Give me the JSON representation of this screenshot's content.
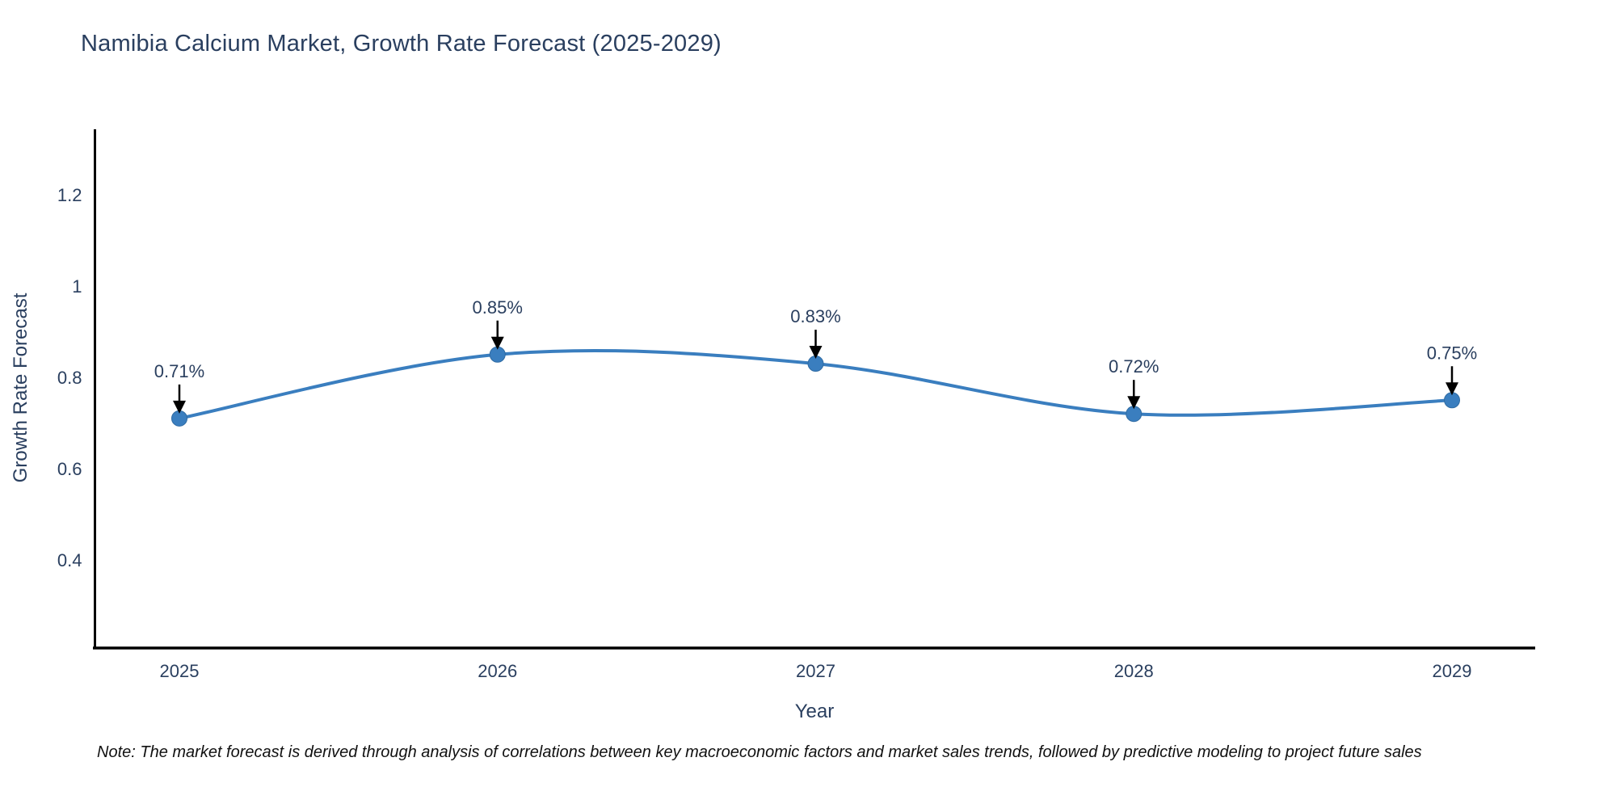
{
  "note": "Note: The market forecast is derived through analysis of correlations between key macroeconomic factors and market sales trends, followed by predictive modeling to project future sales",
  "colors": {
    "line": "#3a7ebf",
    "marker_fill": "#3a7ebf",
    "marker_edge": "#2f6ba3",
    "axis_line": "#000000",
    "tick_text": "#2a3f5f",
    "annotation_text": "#2a3f5f",
    "annotation_arrow": "#000000",
    "title_text": "#2a3f5f",
    "background": "#ffffff"
  },
  "chart_data": {
    "type": "line",
    "title": "Namibia Calcium Market, Growth Rate Forecast (2025-2029)",
    "xlabel": "Year",
    "ylabel": "Growth Rate Forecast",
    "x": [
      "2025",
      "2026",
      "2027",
      "2028",
      "2029"
    ],
    "values": [
      0.71,
      0.85,
      0.83,
      0.72,
      0.75
    ],
    "point_labels": [
      "0.71%",
      "0.85%",
      "0.83%",
      "0.72%",
      "0.75%"
    ],
    "yticks": [
      "0.4",
      "0.6",
      "0.8",
      "1",
      "1.2"
    ],
    "ytick_values": [
      0.4,
      0.6,
      0.8,
      1.0,
      1.2
    ],
    "ylim": [
      0.2,
      1.34
    ],
    "line_shape": "spline",
    "grid": false,
    "legend_position": "none",
    "markers": true,
    "annotations_with_arrows": true
  }
}
